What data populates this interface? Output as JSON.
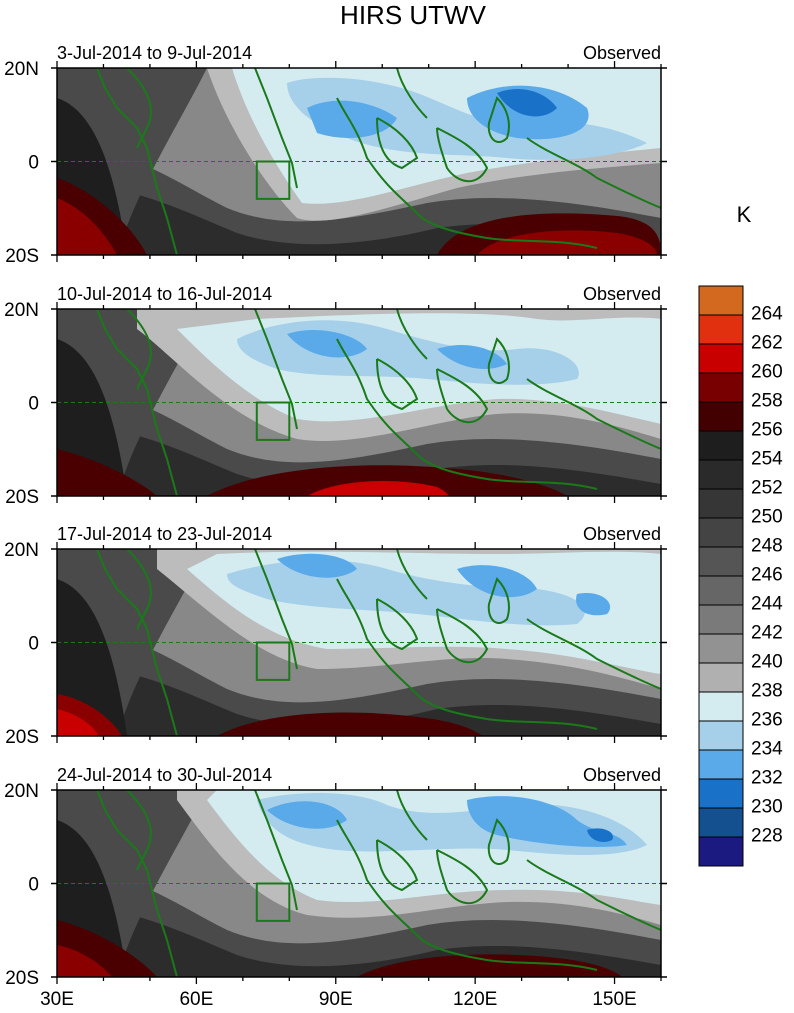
{
  "figure": {
    "title": "HIRS UTWV",
    "units": "K"
  },
  "chart_data": {
    "type": "heatmap",
    "title": "HIRS UTWV",
    "x_ticks": [
      "30E",
      "60E",
      "90E",
      "120E",
      "150E"
    ],
    "x_tick_values": [
      30,
      60,
      90,
      120,
      150
    ],
    "xlim": [
      30,
      160
    ],
    "y_ticks": [
      "20N",
      "0",
      "20S"
    ],
    "y_tick_values": [
      20,
      0,
      -20
    ],
    "ylim": [
      -20,
      20
    ],
    "panels": [
      {
        "period": "3-Jul-2014 to 9-Jul-2014",
        "label": "Observed"
      },
      {
        "period": "10-Jul-2014 to 16-Jul-2014",
        "label": "Observed"
      },
      {
        "period": "17-Jul-2014 to 23-Jul-2014",
        "label": "Observed"
      },
      {
        "period": "24-Jul-2014 to 30-Jul-2014",
        "label": "Observed"
      }
    ],
    "colorbar": {
      "units": "K",
      "levels": [
        "264",
        "262",
        "260",
        "258",
        "256",
        "254",
        "252",
        "250",
        "248",
        "246",
        "244",
        "242",
        "240",
        "238",
        "236",
        "234",
        "232",
        "230",
        "228"
      ],
      "colors": [
        "#d2691e",
        "#e03010",
        "#c80000",
        "#780000",
        "#420000",
        "#1e1e1e",
        "#2a2a2a",
        "#363636",
        "#444444",
        "#555555",
        "#666666",
        "#7a7a7a",
        "#929292",
        "#b0b0b0",
        "#d4ecf0",
        "#a6d0ea",
        "#5aaaea",
        "#1a72c8",
        "#145090",
        "#1a1a80"
      ]
    },
    "colors": {
      "coast": "#1a7a1a",
      "box": "#1a7a1a",
      "equator": "#1a7a1a"
    }
  }
}
